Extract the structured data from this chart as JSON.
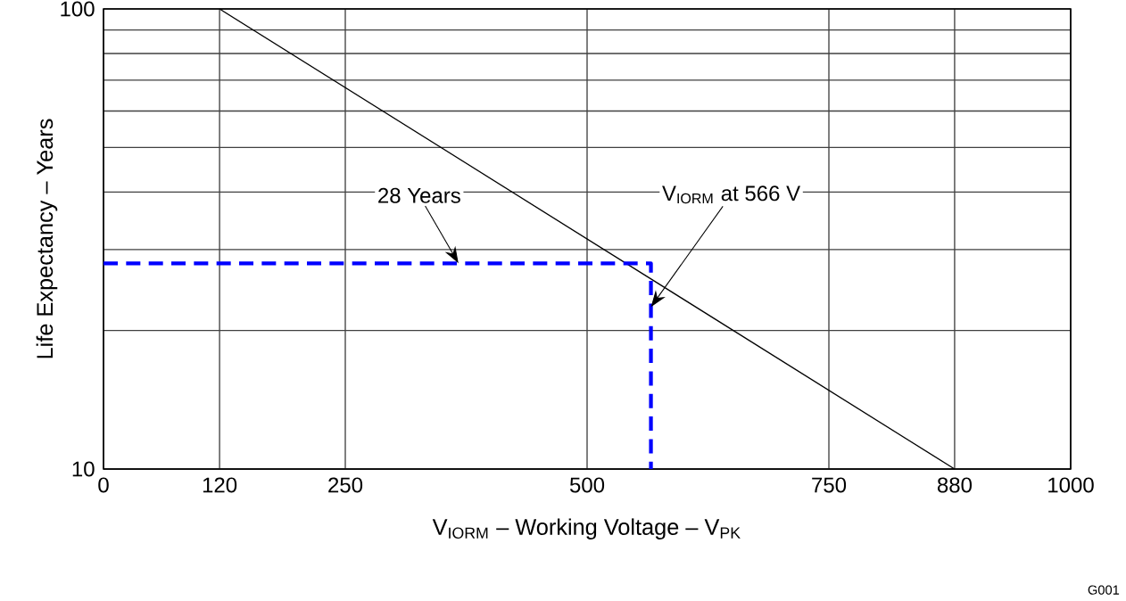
{
  "chart_data": {
    "type": "line",
    "xlabel": "V$_{IORM}$ – Working Voltage – V$_{PK}$",
    "ylabel": "Life Expectancy – Years",
    "log": "y",
    "grid": true,
    "xlim": [
      0,
      1000
    ],
    "ylim": [
      10,
      100
    ],
    "xticks": [
      0,
      120,
      250,
      500,
      750,
      880,
      1000
    ],
    "yticks": [
      10,
      100
    ],
    "series": [
      {
        "x": [
          120,
          880
        ],
        "values": [
          100,
          10
        ],
        "color": "#000000"
      },
      {
        "x": [
          0,
          566,
          566
        ],
        "values": [
          28,
          28,
          10
        ],
        "color": "#0000ff",
        "line_style": "dashed"
      }
    ],
    "annotations": [
      {
        "text": "28 Years",
        "x": 367,
        "y": 28
      },
      {
        "text": "V$_{IORM}$ at 566 V",
        "x": 566,
        "y": 22.5
      },
      "G001"
    ]
  }
}
